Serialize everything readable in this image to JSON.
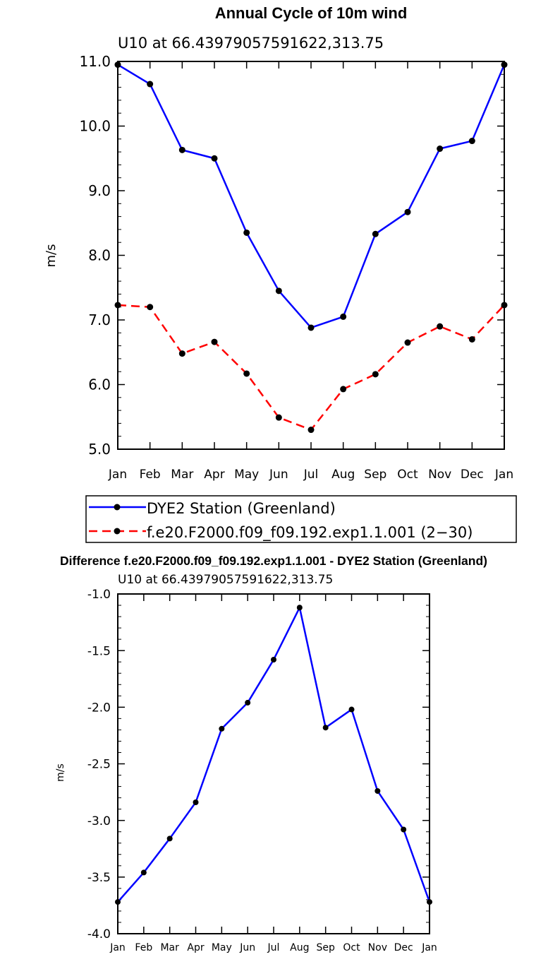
{
  "chart_data": [
    {
      "type": "line",
      "title": "Annual Cycle of 10m wind",
      "subtitle": "U10  at  66.43979057591622,313.75",
      "xlabel": "",
      "ylabel": "m/s",
      "categories": [
        "Jan",
        "Feb",
        "Mar",
        "Apr",
        "May",
        "Jun",
        "Jul",
        "Aug",
        "Sep",
        "Oct",
        "Nov",
        "Dec",
        "Jan"
      ],
      "ylim": [
        5.0,
        11.0
      ],
      "yticks": [
        "5.0",
        "6.0",
        "7.0",
        "8.0",
        "9.0",
        "10.0",
        "11.0"
      ],
      "legend_position": "bottom",
      "series": [
        {
          "name": "DYE2 Station (Greenland)",
          "color": "#0000ff",
          "dash": "solid",
          "values": [
            10.95,
            10.65,
            9.63,
            9.5,
            8.35,
            7.45,
            6.88,
            7.05,
            8.33,
            8.67,
            9.65,
            9.77,
            10.95
          ]
        },
        {
          "name": "f.e20.F2000.f09_f09.192.exp1.1.001 (2−30)",
          "color": "#ff0000",
          "dash": "dashed",
          "values": [
            7.23,
            7.2,
            6.48,
            6.66,
            6.17,
            5.49,
            5.3,
            5.93,
            6.16,
            6.65,
            6.9,
            6.7,
            7.23
          ]
        }
      ]
    },
    {
      "type": "line",
      "title": "Difference f.e20.F2000.f09_f09.192.exp1.1.001 - DYE2 Station (Greenland)",
      "subtitle": "U10  at  66.43979057591622,313.75",
      "xlabel": "",
      "ylabel": "m/s",
      "categories": [
        "Jan",
        "Feb",
        "Mar",
        "Apr",
        "May",
        "Jun",
        "Jul",
        "Aug",
        "Sep",
        "Oct",
        "Nov",
        "Dec",
        "Jan"
      ],
      "ylim": [
        -4.0,
        -1.0
      ],
      "yticks": [
        "-4.0",
        "-3.5",
        "-3.0",
        "-2.5",
        "-2.0",
        "-1.5",
        "-1.0"
      ],
      "series": [
        {
          "name": "Difference",
          "color": "#0000ff",
          "dash": "solid",
          "values": [
            -3.72,
            -3.46,
            -3.16,
            -2.84,
            -2.19,
            -1.96,
            -1.58,
            -1.12,
            -2.18,
            -2.02,
            -2.74,
            -3.08,
            -3.72
          ]
        }
      ]
    }
  ]
}
